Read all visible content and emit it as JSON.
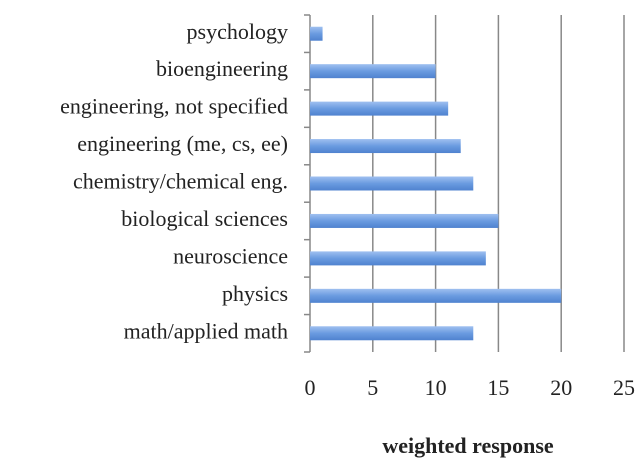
{
  "chart_data": {
    "type": "bar",
    "orientation": "horizontal",
    "categories": [
      "psychology",
      "bioengineering",
      "engineering, not specified",
      "engineering (me, cs, ee)",
      "chemistry/chemical eng.",
      "biological sciences",
      "neuroscience",
      "physics",
      "math/applied math"
    ],
    "values": [
      1,
      10,
      11,
      12,
      13,
      15,
      14,
      20,
      13
    ],
    "color": "#6a9be0",
    "xlabel": "weighted response",
    "xlim": [
      0,
      25
    ],
    "xticks": [
      0,
      5,
      10,
      15,
      20,
      25
    ],
    "grid": true
  }
}
